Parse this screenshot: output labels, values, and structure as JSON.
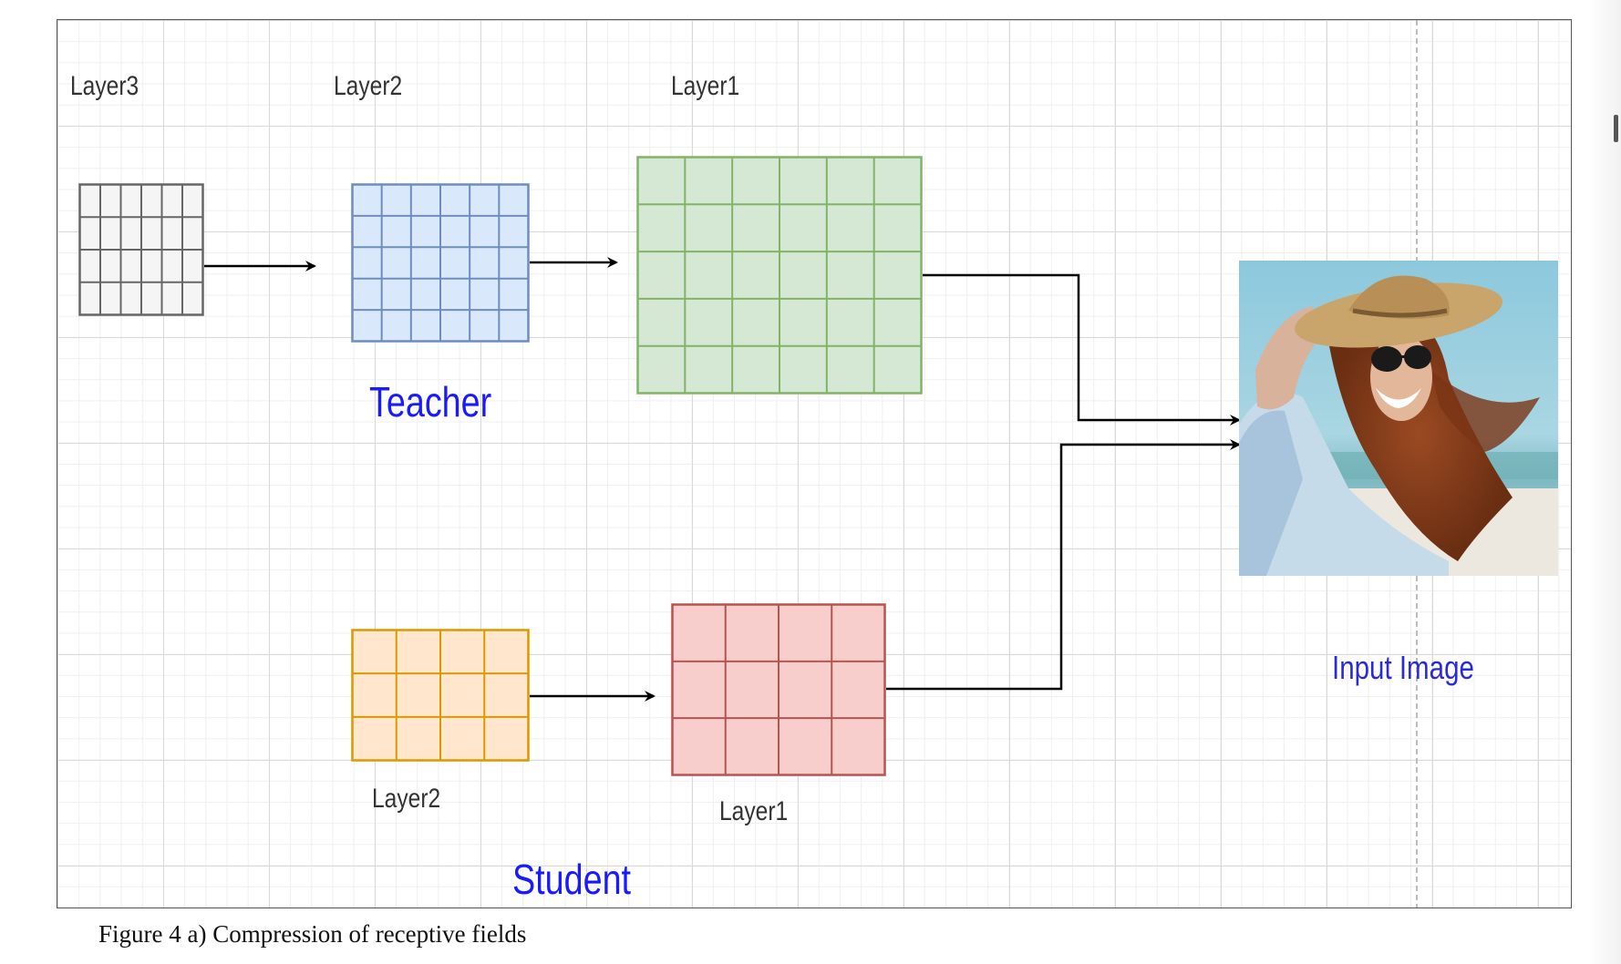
{
  "figure": {
    "caption": "Figure 4 a) Compression of receptive fields"
  },
  "teacher": {
    "group_label": "Teacher",
    "layer3": {
      "label": "Layer3",
      "rows": 4,
      "cols": 6,
      "fill": "#f5f5f5",
      "stroke": "#666666"
    },
    "layer2": {
      "label": "Layer2",
      "rows": 5,
      "cols": 6,
      "fill": "#dae8fc",
      "stroke": "#6c8ebf"
    },
    "layer1": {
      "label": "Layer1",
      "rows": 5,
      "cols": 6,
      "fill": "#d5e8d4",
      "stroke": "#82b366"
    }
  },
  "student": {
    "group_label": "Student",
    "layer2": {
      "label": "Layer2",
      "rows": 3,
      "cols": 4,
      "fill": "#ffe6cc",
      "stroke": "#d79b00"
    },
    "layer1": {
      "label": "Layer1",
      "rows": 3,
      "cols": 4,
      "fill": "#f8cecc",
      "stroke": "#b85450"
    }
  },
  "input": {
    "label": "Input Image",
    "image_icon": "woman-in-sun-hat-photo"
  },
  "colors": {
    "group_label": "#1a1aff",
    "input_label": "#2b2bd6",
    "connector": "#000000"
  }
}
